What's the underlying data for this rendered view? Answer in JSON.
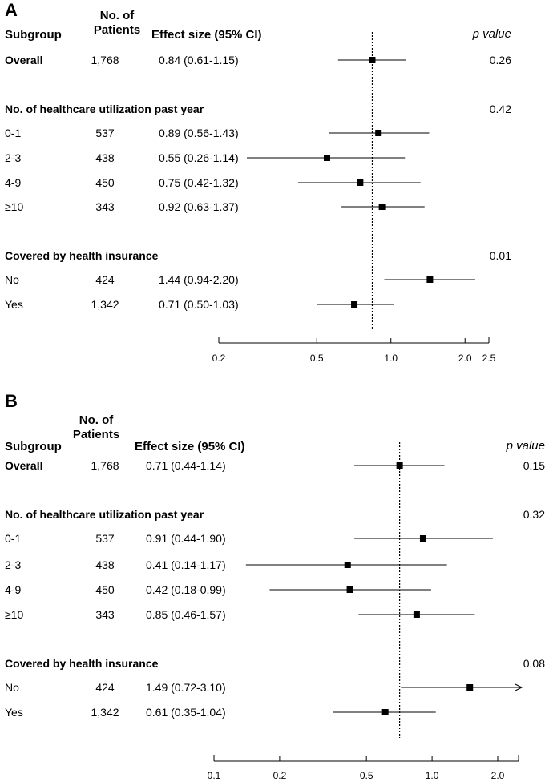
{
  "chart_data": [
    {
      "type": "forest",
      "panel_label": "A",
      "headers": {
        "subgroup": "Subgroup",
        "patients": "No. of Patients",
        "effect": "Effect size (95% CI)",
        "pvalue": "p value"
      },
      "x_scale": "log",
      "xlim": [
        0.2,
        2.5
      ],
      "x_ticks": [
        0.2,
        0.5,
        1.0,
        2.0,
        2.5
      ],
      "x_tick_labels": [
        "0.2",
        "0.5",
        "1.0",
        "2.0",
        "2.5"
      ],
      "reference_line": 0.84,
      "rows": [
        {
          "label": "Overall",
          "bold": true,
          "n": "1,768",
          "effect_text": "0.84 (0.61-1.15)",
          "est": 0.84,
          "lo": 0.61,
          "hi": 1.15,
          "p": "0.26"
        },
        {
          "label": "No. of healthcare utilization past year",
          "bold": true,
          "header": true,
          "p": "0.42"
        },
        {
          "label": "0-1",
          "n": "537",
          "effect_text": "0.89 (0.56-1.43)",
          "est": 0.89,
          "lo": 0.56,
          "hi": 1.43
        },
        {
          "label": "2-3",
          "n": "438",
          "effect_text": "0.55 (0.26-1.14)",
          "est": 0.55,
          "lo": 0.26,
          "hi": 1.14
        },
        {
          "label": "4-9",
          "n": "450",
          "effect_text": "0.75 (0.42-1.32)",
          "est": 0.75,
          "lo": 0.42,
          "hi": 1.32
        },
        {
          "label": "≥10",
          "n": "343",
          "effect_text": "0.92 (0.63-1.37)",
          "est": 0.92,
          "lo": 0.63,
          "hi": 1.37
        },
        {
          "label": "Covered by health insurance",
          "bold": true,
          "header": true,
          "p": "0.01"
        },
        {
          "label": "No",
          "n": "424",
          "effect_text": "1.44 (0.94-2.20)",
          "est": 1.44,
          "lo": 0.94,
          "hi": 2.2
        },
        {
          "label": "Yes",
          "n": "1,342",
          "effect_text": "0.71 (0.50-1.03)",
          "est": 0.71,
          "lo": 0.5,
          "hi": 1.03
        }
      ]
    },
    {
      "type": "forest",
      "panel_label": "B",
      "headers": {
        "subgroup": "Subgroup",
        "patients": "No. of Patients",
        "effect": "Effect size (95% CI)",
        "pvalue": "p value"
      },
      "x_scale": "log",
      "xlim": [
        0.1,
        2.5
      ],
      "x_ticks": [
        0.1,
        0.2,
        0.5,
        1.0,
        2.0
      ],
      "x_tick_labels": [
        "0.1",
        "0.2",
        "0.5",
        "1.0",
        "2.0"
      ],
      "reference_line": 0.71,
      "rows": [
        {
          "label": "Overall",
          "bold": true,
          "n": "1,768",
          "effect_text": "0.71 (0.44-1.14)",
          "est": 0.71,
          "lo": 0.44,
          "hi": 1.14,
          "p": "0.15"
        },
        {
          "label": "No. of healthcare utilization past year",
          "bold": true,
          "header": true,
          "p": "0.32"
        },
        {
          "label": "0-1",
          "n": "537",
          "effect_text": "0.91 (0.44-1.90)",
          "est": 0.91,
          "lo": 0.44,
          "hi": 1.9
        },
        {
          "label": "2-3",
          "n": "438",
          "effect_text": "0.41 (0.14-1.17)",
          "est": 0.41,
          "lo": 0.14,
          "hi": 1.17
        },
        {
          "label": "4-9",
          "n": "450",
          "effect_text": "0.42 (0.18-0.99)",
          "est": 0.42,
          "lo": 0.18,
          "hi": 0.99
        },
        {
          "label": "≥10",
          "n": "343",
          "effect_text": "0.85 (0.46-1.57)",
          "est": 0.85,
          "lo": 0.46,
          "hi": 1.57
        },
        {
          "label": "Covered by health insurance",
          "bold": true,
          "header": true,
          "p": "0.08"
        },
        {
          "label": "No",
          "n": "424",
          "effect_text": "1.49 (0.72-3.10)",
          "est": 1.49,
          "lo": 0.72,
          "hi": 3.1,
          "arrow_right": true
        },
        {
          "label": "Yes",
          "n": "1,342",
          "effect_text": "0.61 (0.35-1.04)",
          "est": 0.61,
          "lo": 0.35,
          "hi": 1.04
        }
      ]
    }
  ]
}
